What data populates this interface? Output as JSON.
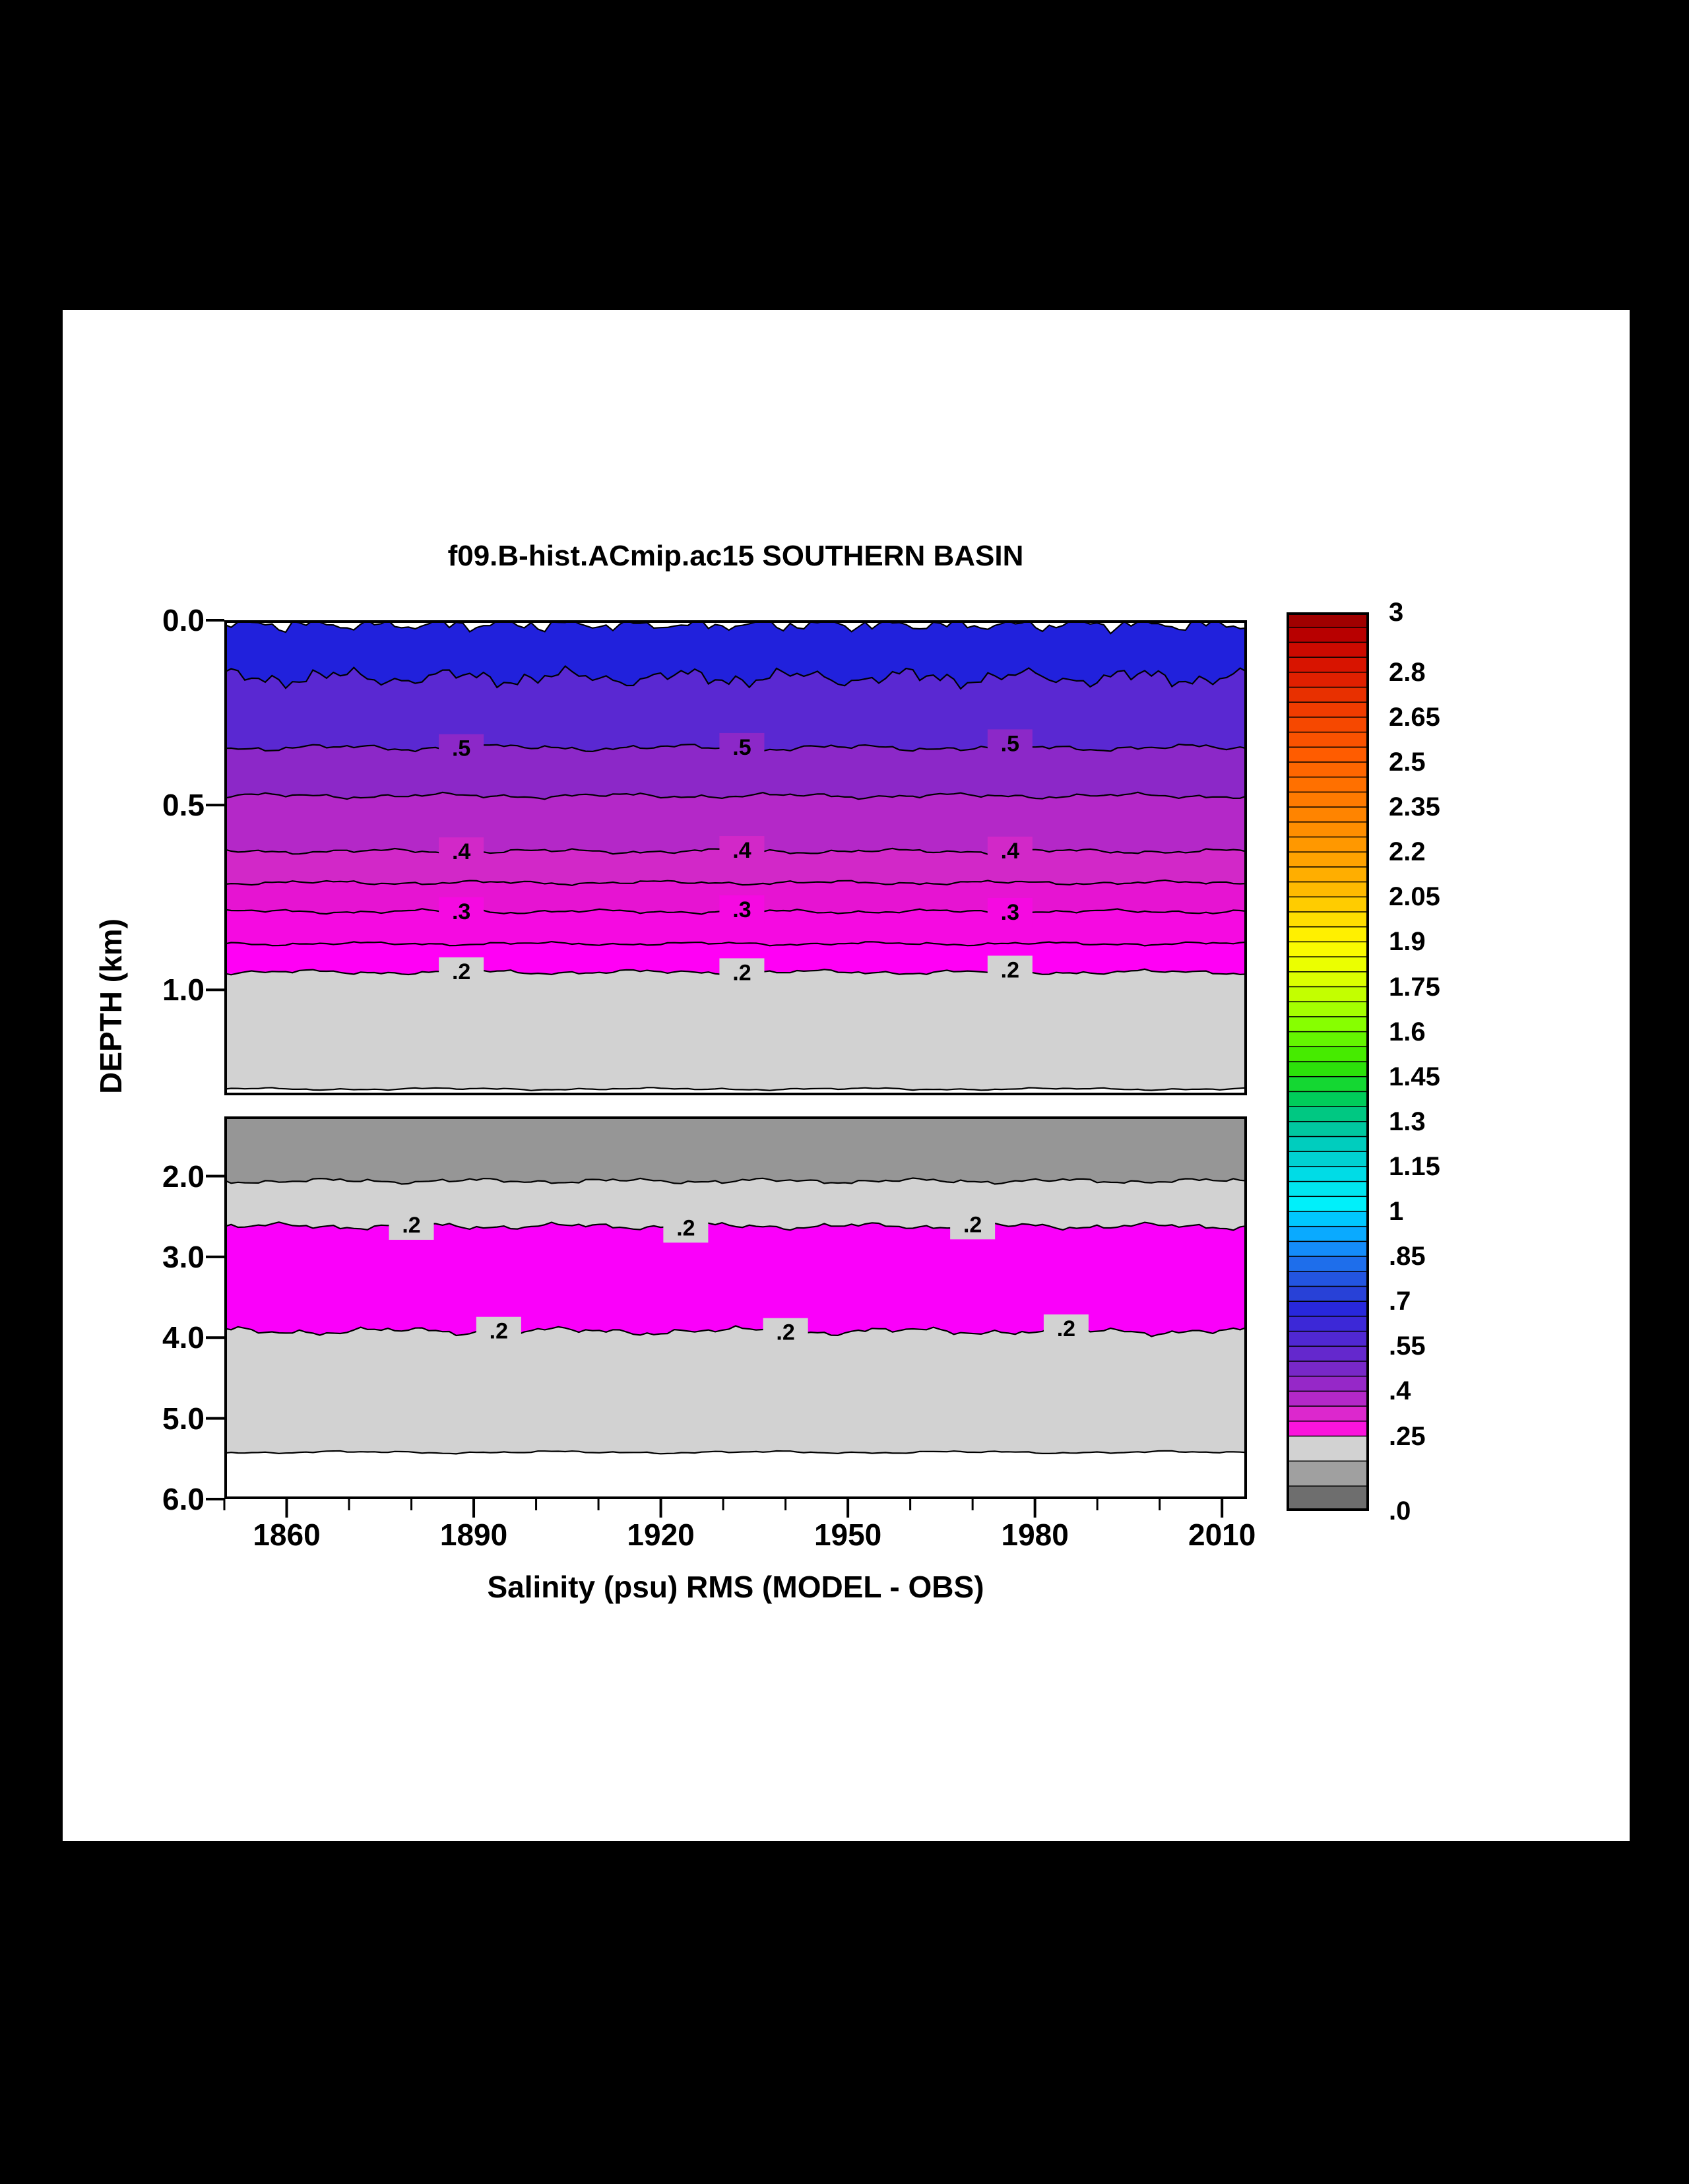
{
  "page": {
    "background": "#000000",
    "paper": "#FFFFFF"
  },
  "chart_data": {
    "type": "contour",
    "title": "f09.B-hist.ACmip.ac15 SOUTHERN BASIN",
    "xlabel": "Salinity (psu) RMS (MODEL - OBS)",
    "ylabel": "DEPTH (km)",
    "x_range": [
      1850,
      2014
    ],
    "x_ticks": [
      1860,
      1890,
      1920,
      1950,
      1980,
      2010
    ],
    "x_minor_step": 10,
    "label_years": {
      "upper": [
        1888,
        1933,
        1976
      ],
      "lower_row1": [
        1880,
        1924,
        1970
      ],
      "lower_row2": [
        1894,
        1940,
        1985
      ]
    },
    "upper_panel": {
      "depth_range": [
        0.0,
        1.285
      ],
      "y_ticks": [
        "0.0",
        "0.5",
        "1.0"
      ],
      "y_tick_values": [
        0.0,
        0.5,
        1.0
      ],
      "bands": [
        {
          "top_depth": 0.012,
          "amp": 0.022,
          "freq": 16,
          "seed": 1,
          "color": "#2121DC"
        },
        {
          "top_depth": 0.155,
          "amp": 0.03,
          "freq": 9,
          "seed": 2,
          "color": "#5A28D2"
        },
        {
          "top_depth": 0.345,
          "amp": 0.011,
          "freq": 6,
          "seed": 3,
          "color": "#8C28C8",
          "contour_label": ".5",
          "label_years_key": "upper"
        },
        {
          "top_depth": 0.475,
          "amp": 0.009,
          "freq": 6,
          "seed": 4,
          "color": "#B428C8"
        },
        {
          "top_depth": 0.625,
          "amp": 0.008,
          "freq": 6,
          "seed": 5,
          "color": "#D228C8",
          "contour_label": ".4",
          "label_years_key": "upper"
        },
        {
          "top_depth": 0.71,
          "amp": 0.007,
          "freq": 6,
          "seed": 6,
          "color": "#E614D2"
        },
        {
          "top_depth": 0.788,
          "amp": 0.007,
          "freq": 6,
          "seed": 7,
          "color": "#F50AE1",
          "contour_label": ".3",
          "label_years_key": "upper"
        },
        {
          "top_depth": 0.875,
          "amp": 0.006,
          "freq": 6,
          "seed": 8,
          "color": "#FF00F5"
        },
        {
          "top_depth": 0.952,
          "amp": 0.008,
          "freq": 6,
          "seed": 9,
          "color": "#D2D2D2",
          "contour_label": ".2",
          "label_years_key": "upper"
        },
        {
          "top_depth": 1.268,
          "amp": 0.004,
          "freq": 5,
          "seed": 10,
          "color": "#FFFFFF"
        }
      ]
    },
    "lower_panel": {
      "depth_range": [
        1.26,
        6.0
      ],
      "y_ticks": [
        "2.0",
        "3.0",
        "4.0",
        "5.0",
        "6.0"
      ],
      "y_tick_values": [
        2,
        3,
        4,
        5,
        6
      ],
      "bands": [
        {
          "top_depth": 1.26,
          "amp": 0,
          "freq": 0,
          "seed": 0,
          "color": "#969696",
          "no_line": true
        },
        {
          "top_depth": 2.06,
          "amp": 0.04,
          "freq": 7,
          "seed": 11,
          "color": "#D2D2D2"
        },
        {
          "top_depth": 2.62,
          "amp": 0.05,
          "freq": 7,
          "seed": 12,
          "color": "#FA00FA",
          "contour_label": ".2",
          "label_years_key": "lower_row1",
          "label_side": "above"
        },
        {
          "top_depth": 3.92,
          "amp": 0.06,
          "freq": 6,
          "seed": 13,
          "color": "#D2D2D2",
          "contour_label": ".2",
          "label_years_key": "lower_row2",
          "label_side": "below"
        },
        {
          "top_depth": 5.42,
          "amp": 0.02,
          "freq": 5,
          "seed": 14,
          "color": "#FFFFFF"
        }
      ]
    },
    "colorbar": {
      "value_range": [
        0,
        3
      ],
      "labels": [
        {
          "text": "3",
          "value": 3
        },
        {
          "text": "2.8",
          "value": 2.8
        },
        {
          "text": "2.65",
          "value": 2.65
        },
        {
          "text": "2.5",
          "value": 2.5
        },
        {
          "text": "2.35",
          "value": 2.35
        },
        {
          "text": "2.2",
          "value": 2.2
        },
        {
          "text": "2.05",
          "value": 2.05
        },
        {
          "text": "1.9",
          "value": 1.9
        },
        {
          "text": "1.75",
          "value": 1.75
        },
        {
          "text": "1.6",
          "value": 1.6
        },
        {
          "text": "1.45",
          "value": 1.45
        },
        {
          "text": "1.3",
          "value": 1.3
        },
        {
          "text": "1.15",
          "value": 1.15
        },
        {
          "text": "1",
          "value": 1
        },
        {
          "text": ".85",
          "value": 0.85
        },
        {
          "text": ".7",
          "value": 0.7
        },
        {
          "text": ".55",
          "value": 0.55
        },
        {
          "text": ".4",
          "value": 0.4
        },
        {
          "text": ".25",
          "value": 0.25
        },
        {
          "text": ".0",
          "value": 0
        }
      ],
      "intervals": [
        {
          "from": 3.0,
          "to": 2.8,
          "colors": [
            "#A00000",
            "#B80000",
            "#CC0A00",
            "#D81400"
          ]
        },
        {
          "from": 2.8,
          "to": 2.65,
          "colors": [
            "#E02000",
            "#E83000",
            "#F03C00"
          ]
        },
        {
          "from": 2.65,
          "to": 2.5,
          "colors": [
            "#F64800",
            "#FA5200",
            "#FF5C00"
          ]
        },
        {
          "from": 2.5,
          "to": 2.35,
          "colors": [
            "#FF6600",
            "#FF7000",
            "#FF7A00"
          ]
        },
        {
          "from": 2.35,
          "to": 2.2,
          "colors": [
            "#FF8400",
            "#FF8E00",
            "#FF9800"
          ]
        },
        {
          "from": 2.2,
          "to": 2.05,
          "colors": [
            "#FFA200",
            "#FFAE00",
            "#FFBA00"
          ]
        },
        {
          "from": 2.05,
          "to": 1.9,
          "colors": [
            "#FFCC00",
            "#FFDE00",
            "#FFF000"
          ]
        },
        {
          "from": 1.9,
          "to": 1.75,
          "colors": [
            "#FAFA00",
            "#EBFF00",
            "#DCFF00"
          ]
        },
        {
          "from": 1.75,
          "to": 1.6,
          "colors": [
            "#C3FF00",
            "#A5FF00",
            "#87FF00"
          ]
        },
        {
          "from": 1.6,
          "to": 1.45,
          "colors": [
            "#64F500",
            "#46EB00",
            "#2CE10A"
          ]
        },
        {
          "from": 1.45,
          "to": 1.3,
          "colors": [
            "#14D732",
            "#00CD5A",
            "#00C882"
          ]
        },
        {
          "from": 1.3,
          "to": 1.15,
          "colors": [
            "#00C8A0",
            "#00CDBE",
            "#00D2D2"
          ]
        },
        {
          "from": 1.15,
          "to": 1.0,
          "colors": [
            "#00DCE6",
            "#00E6F0",
            "#00F0FA"
          ]
        },
        {
          "from": 1.0,
          "to": 0.85,
          "colors": [
            "#00C8FF",
            "#0AAAFF",
            "#148CFA"
          ]
        },
        {
          "from": 0.85,
          "to": 0.7,
          "colors": [
            "#1E6EEB",
            "#2355E1",
            "#2841D7"
          ]
        },
        {
          "from": 0.7,
          "to": 0.55,
          "colors": [
            "#2828DC",
            "#3C28D7",
            "#5028D2"
          ]
        },
        {
          "from": 0.55,
          "to": 0.4,
          "colors": [
            "#6428CD",
            "#7828C8",
            "#9628C8"
          ]
        },
        {
          "from": 0.4,
          "to": 0.25,
          "colors": [
            "#B428C8",
            "#DC28CD",
            "#FA14DC"
          ]
        },
        {
          "from": 0.25,
          "to": 0.0,
          "colors": [
            "#D2D2D2",
            "#A0A0A0",
            "#6E6E6E"
          ]
        }
      ]
    }
  }
}
